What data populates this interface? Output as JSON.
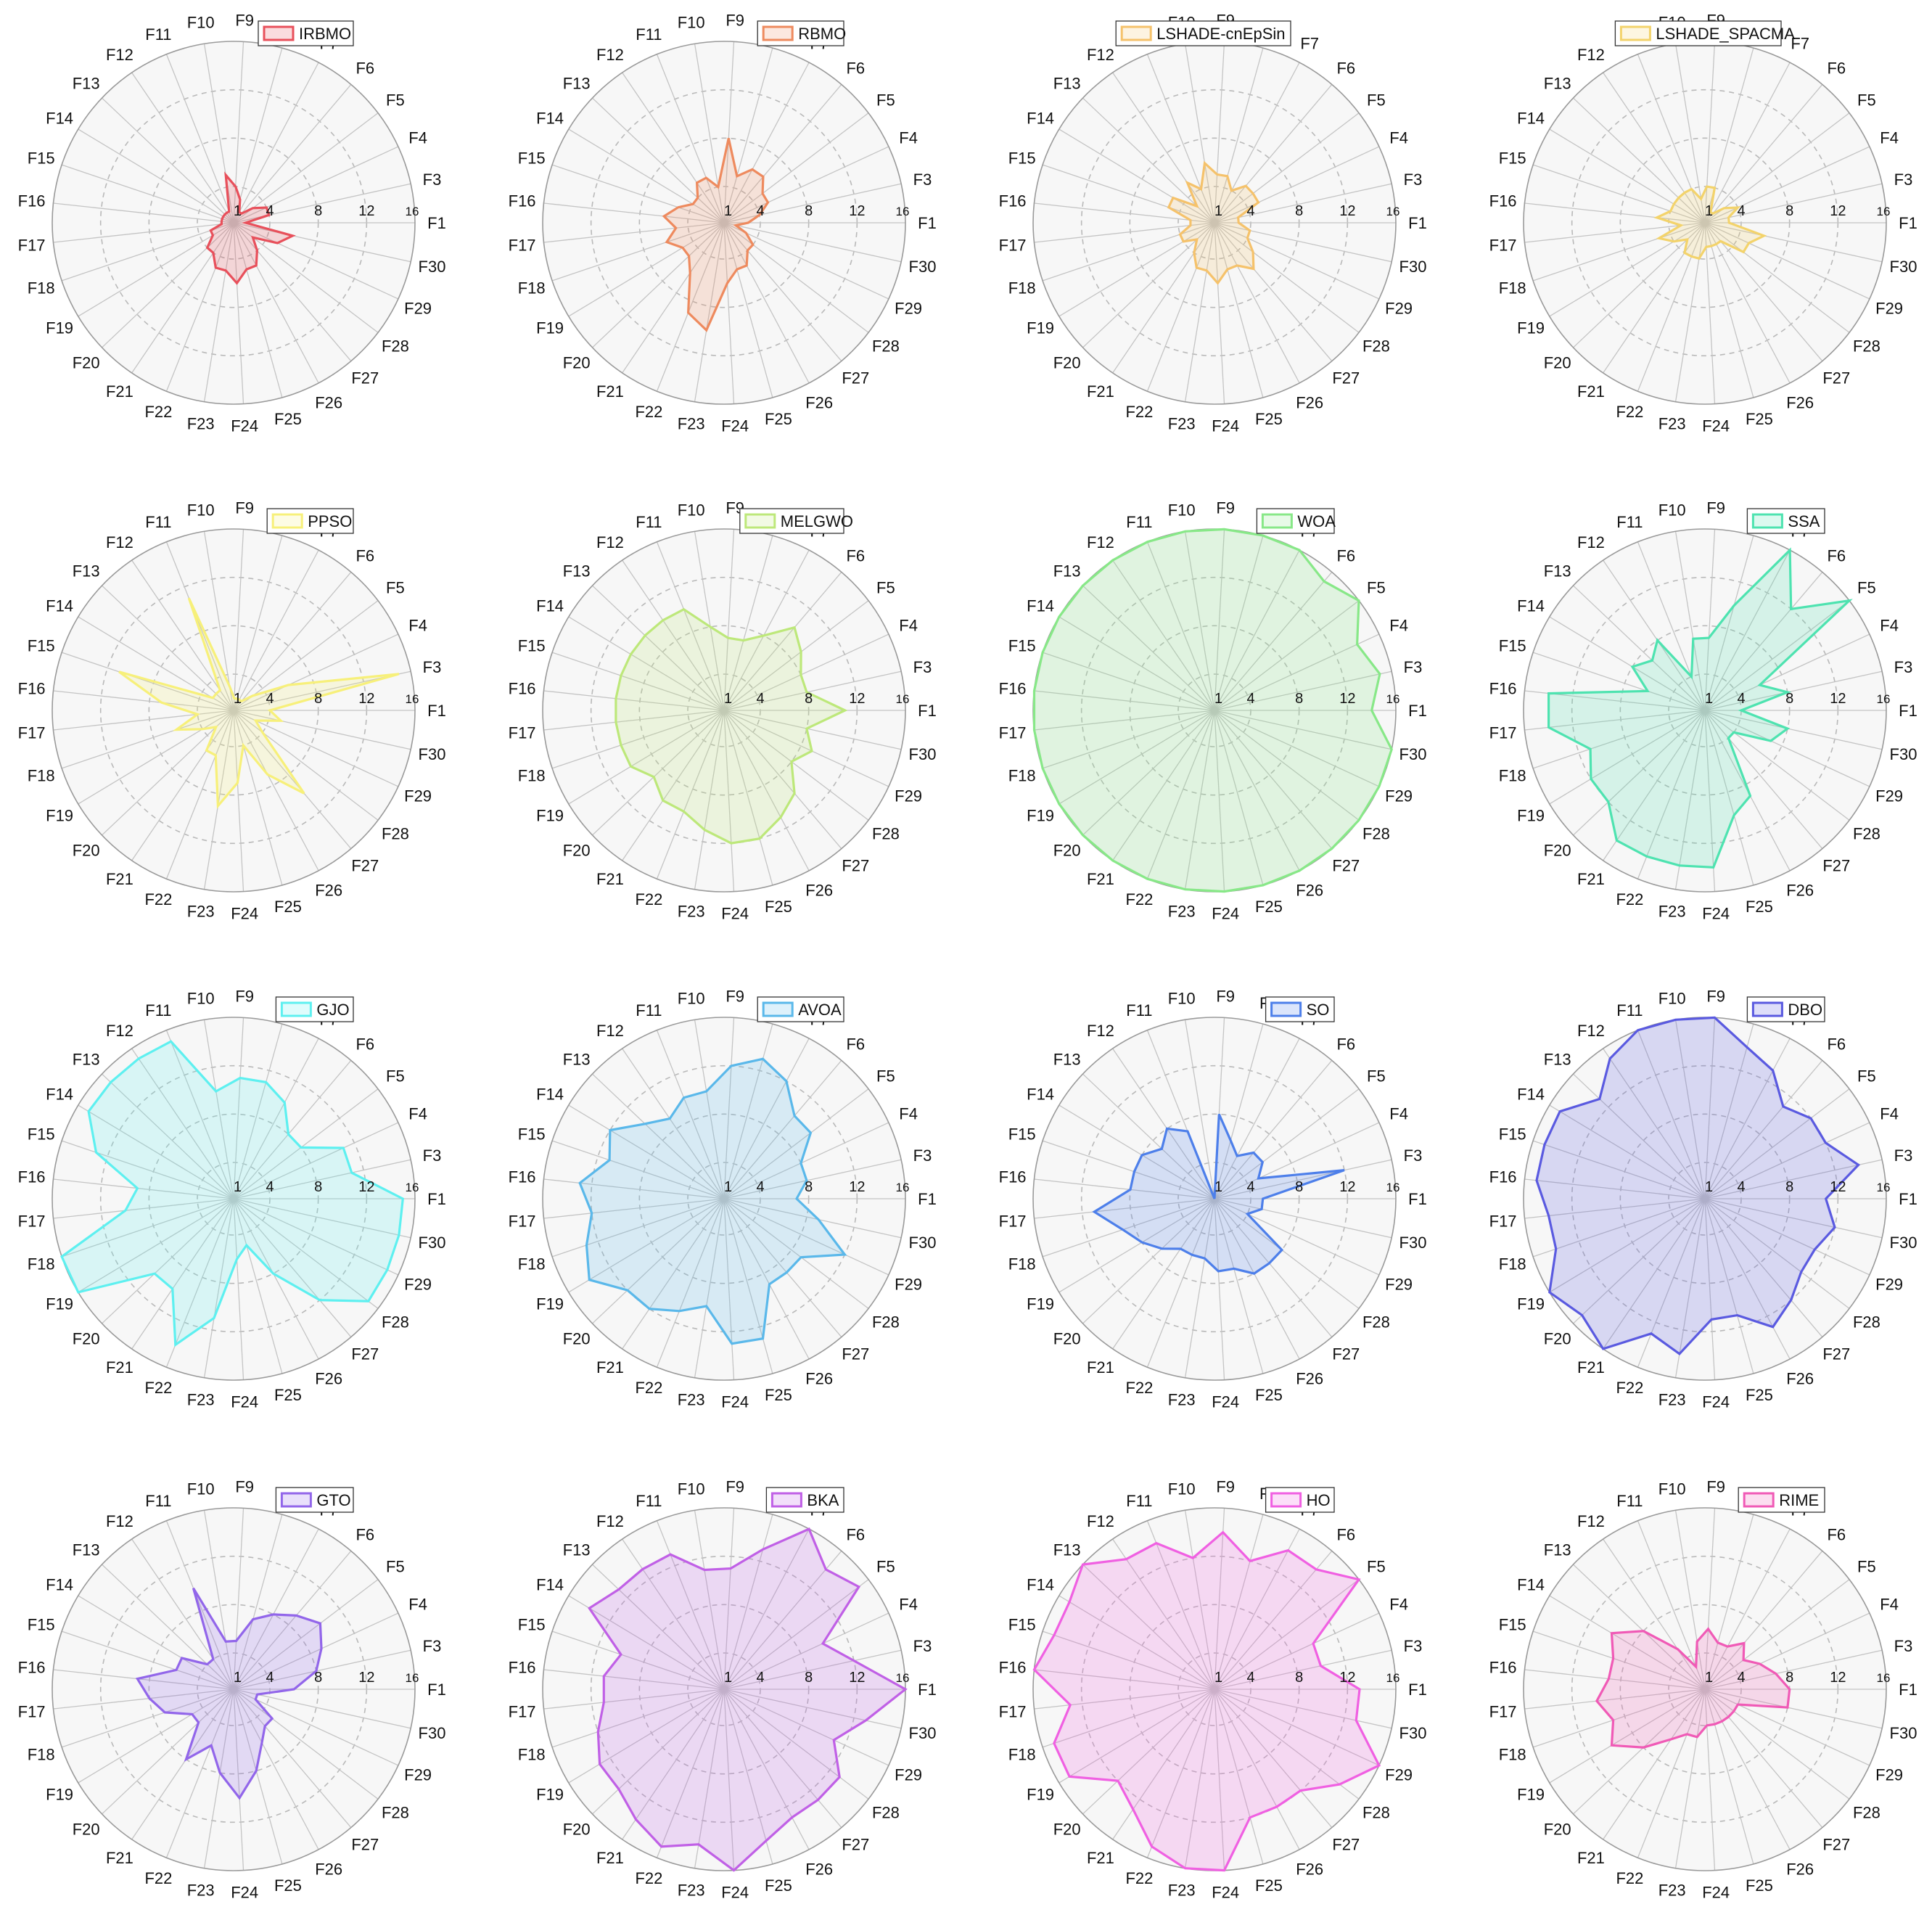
{
  "chart_data": {
    "type": "radar",
    "categories": [
      "F1",
      "F3",
      "F4",
      "F5",
      "F6",
      "F7",
      "F8",
      "F9",
      "F10",
      "F11",
      "F12",
      "F13",
      "F14",
      "F15",
      "F16",
      "F17",
      "F18",
      "F19",
      "F20",
      "F21",
      "F22",
      "F23",
      "F24",
      "F25",
      "F26",
      "F27",
      "F28",
      "F29",
      "F30"
    ],
    "rtick_labels": [
      "1",
      "4",
      "8",
      "12",
      "16"
    ],
    "rlim": [
      1,
      16
    ],
    "grid": true,
    "legend_placement": "top-right",
    "panels": [
      {
        "name": "IRBMO",
        "color": "#e8505b",
        "values": [
          2,
          4,
          4,
          3,
          2,
          2,
          3,
          4,
          5,
          2,
          2,
          2,
          2,
          2,
          2,
          2,
          3,
          3,
          4,
          4,
          5,
          5,
          6,
          5,
          5,
          4,
          3,
          5,
          6
        ]
      },
      {
        "name": "RBMO",
        "color": "#ee8a5e",
        "values": [
          3,
          4,
          5,
          5,
          6,
          6,
          5,
          8,
          4,
          5,
          5,
          4,
          4,
          5,
          6,
          5,
          6,
          5,
          5,
          6,
          9,
          10,
          6,
          5,
          5,
          4,
          4,
          3,
          2
        ]
      },
      {
        "name": "LSHADE-cnEpSin",
        "color": "#f5c26b",
        "values": [
          3,
          3,
          5,
          5,
          5,
          4,
          5,
          5,
          6,
          4,
          5,
          3,
          5,
          5,
          3,
          3,
          4,
          4,
          3,
          4,
          5,
          5,
          6,
          5,
          5,
          6,
          5,
          4,
          4
        ]
      },
      {
        "name": "LSHADE_SPACMA",
        "color": "#f3d36b",
        "values": [
          3,
          3,
          4,
          3,
          2,
          2,
          4,
          4,
          3,
          4,
          4,
          4,
          4,
          4,
          5,
          3,
          5,
          4,
          3,
          4,
          4,
          4,
          3,
          3,
          3,
          3,
          5,
          5,
          6
        ]
      },
      {
        "name": "PPSO",
        "color": "#f7f07a",
        "values": [
          4,
          15,
          6,
          3,
          2,
          2,
          2,
          2,
          3,
          11,
          3,
          3,
          3,
          11,
          7,
          4,
          6,
          4,
          3,
          5,
          5,
          9,
          7,
          4,
          7,
          10,
          4,
          3,
          5
        ]
      },
      {
        "name": "MELGWO",
        "color": "#bde87a",
        "values": [
          11,
          8,
          8,
          9,
          10,
          8,
          7,
          7,
          8,
          10,
          10,
          10,
          10,
          10,
          10,
          10,
          10,
          10,
          9,
          10,
          10,
          11,
          12,
          12,
          11,
          10,
          8,
          9,
          8
        ]
      },
      {
        "name": "WOA",
        "color": "#88e888",
        "values": [
          14,
          15,
          14,
          16,
          15,
          16,
          16,
          16,
          16,
          16,
          16,
          16,
          16,
          16,
          16,
          16,
          16,
          16,
          16,
          16,
          16,
          16,
          16,
          16,
          16,
          16,
          16,
          16,
          16
        ]
      },
      {
        "name": "SSA",
        "color": "#4ee3b0",
        "values": [
          4,
          8,
          6,
          16,
          12,
          16,
          10,
          7,
          7,
          4,
          8,
          7,
          8,
          6,
          14,
          14,
          11,
          12,
          12,
          14,
          14,
          14,
          14,
          10,
          9,
          4,
          4,
          7,
          8
        ]
      },
      {
        "name": "GJO",
        "color": "#5ef0f0",
        "values": [
          15,
          11,
          11,
          8,
          8,
          10,
          11,
          11,
          10,
          15,
          15,
          15,
          15,
          13,
          9,
          10,
          16,
          16,
          10,
          10,
          14,
          11,
          6,
          5,
          8,
          12,
          15,
          15,
          15
        ]
      },
      {
        "name": "AVOA",
        "color": "#5ab8ea",
        "values": [
          7,
          8,
          8,
          10,
          10,
          12,
          13,
          12,
          10,
          10,
          9,
          10,
          12,
          11,
          13,
          12,
          13,
          14,
          12,
          12,
          11,
          10,
          13,
          13,
          9,
          9,
          9,
          12,
          9
        ]
      },
      {
        "name": "SO",
        "color": "#4d7fea",
        "values": [
          5,
          12,
          5,
          6,
          6,
          5,
          6,
          8,
          1,
          7,
          8,
          7,
          8,
          8,
          8,
          11,
          9,
          8,
          7,
          6,
          6,
          6,
          7,
          7,
          8,
          8,
          8,
          4,
          5
        ]
      },
      {
        "name": "DBO",
        "color": "#5a5ae0",
        "values": [
          11,
          14,
          12,
          12,
          11,
          13,
          14,
          16,
          16,
          16,
          15,
          13,
          15,
          15,
          15,
          14,
          14,
          16,
          15,
          16,
          13,
          14,
          11,
          11,
          13,
          12,
          11,
          11,
          12
        ]
      },
      {
        "name": "GTO",
        "color": "#9266ea",
        "values": [
          6,
          8,
          9,
          10,
          9,
          8,
          7,
          5,
          5,
          10,
          4,
          4,
          6,
          6,
          9,
          8,
          7,
          5,
          5,
          8,
          6,
          8,
          10,
          8,
          6,
          5,
          5,
          3,
          3
        ]
      },
      {
        "name": "BKA",
        "color": "#c060e6",
        "values": [
          16,
          12,
          10,
          15,
          14,
          16,
          13,
          11,
          11,
          13,
          13,
          13,
          14,
          10,
          11,
          11,
          12,
          13,
          13,
          14,
          15,
          14,
          16,
          14,
          13,
          13,
          13,
          11,
          13
        ]
      },
      {
        "name": "HO",
        "color": "#f060e2",
        "values": [
          13,
          10,
          10,
          16,
          14,
          14,
          12,
          14,
          12,
          14,
          14,
          16,
          15,
          15,
          16,
          13,
          15,
          15,
          12,
          13,
          15,
          16,
          16,
          12,
          12,
          12,
          14,
          16,
          13
        ]
      },
      {
        "name": "RIME",
        "color": "#f05ab6",
        "values": [
          8,
          7,
          6,
          5,
          6,
          5,
          5,
          6,
          5,
          3,
          5,
          8,
          10,
          9,
          9,
          10,
          9,
          10,
          8,
          6,
          5,
          5,
          4,
          4,
          4,
          4,
          4,
          4,
          8
        ]
      }
    ]
  }
}
